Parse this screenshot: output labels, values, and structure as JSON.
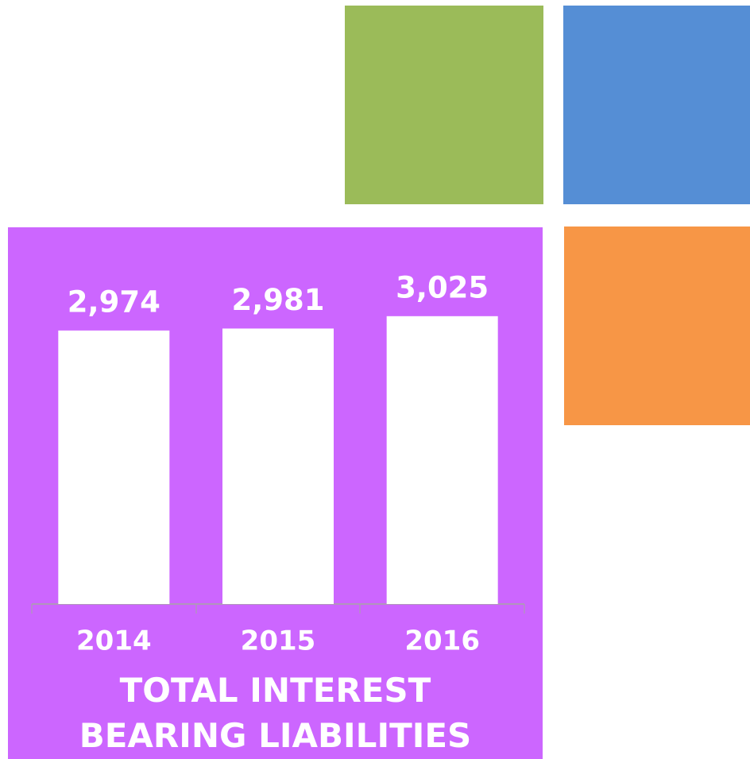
{
  "chart_data": {
    "type": "bar",
    "title": "TOTAL INTEREST BEARING LIABILITIES",
    "categories": [
      "2014",
      "2015",
      "2016"
    ],
    "values": [
      2974,
      2981,
      3025
    ],
    "value_labels": [
      "2,974",
      "2,981",
      "3,025"
    ],
    "color": "#ffffff",
    "ylim": [
      2000,
      3200
    ]
  }
}
